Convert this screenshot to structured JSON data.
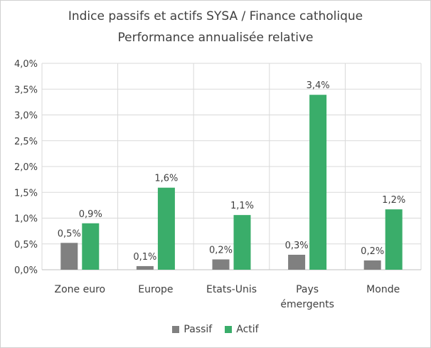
{
  "chart_data": {
    "type": "bar",
    "title": "Indice passifs et actifs SYSA / Finance catholique",
    "subtitle": "Performance annualisée relative",
    "categories": [
      "Zone euro",
      "Europe",
      "Etats-Unis",
      "Pays émergents",
      "Monde"
    ],
    "category_lines": [
      [
        "Zone euro"
      ],
      [
        "Europe"
      ],
      [
        "Etats-Unis"
      ],
      [
        "Pays",
        "émergents"
      ],
      [
        "Monde"
      ]
    ],
    "series": [
      {
        "name": "Passif",
        "color": "#808080",
        "values": [
          0.52,
          0.07,
          0.2,
          0.29,
          0.18
        ],
        "labels": [
          "0,5%",
          "0,1%",
          "0,2%",
          "0,3%",
          "0,2%"
        ]
      },
      {
        "name": "Actif",
        "color": "#3aad6a",
        "values": [
          0.9,
          1.59,
          1.06,
          3.39,
          1.17
        ],
        "labels": [
          "0,9%",
          "1,6%",
          "1,1%",
          "3,4%",
          "1,2%"
        ]
      }
    ],
    "ylim": [
      0,
      4
    ],
    "yticks": [
      0,
      0.5,
      1,
      1.5,
      2,
      2.5,
      3,
      3.5,
      4
    ],
    "ytick_labels": [
      "0,0%",
      "0,5%",
      "1,0%",
      "1,5%",
      "2,0%",
      "2,5%",
      "3,0%",
      "3,5%",
      "4,0%"
    ],
    "grid": true,
    "legend_position": "bottom"
  }
}
